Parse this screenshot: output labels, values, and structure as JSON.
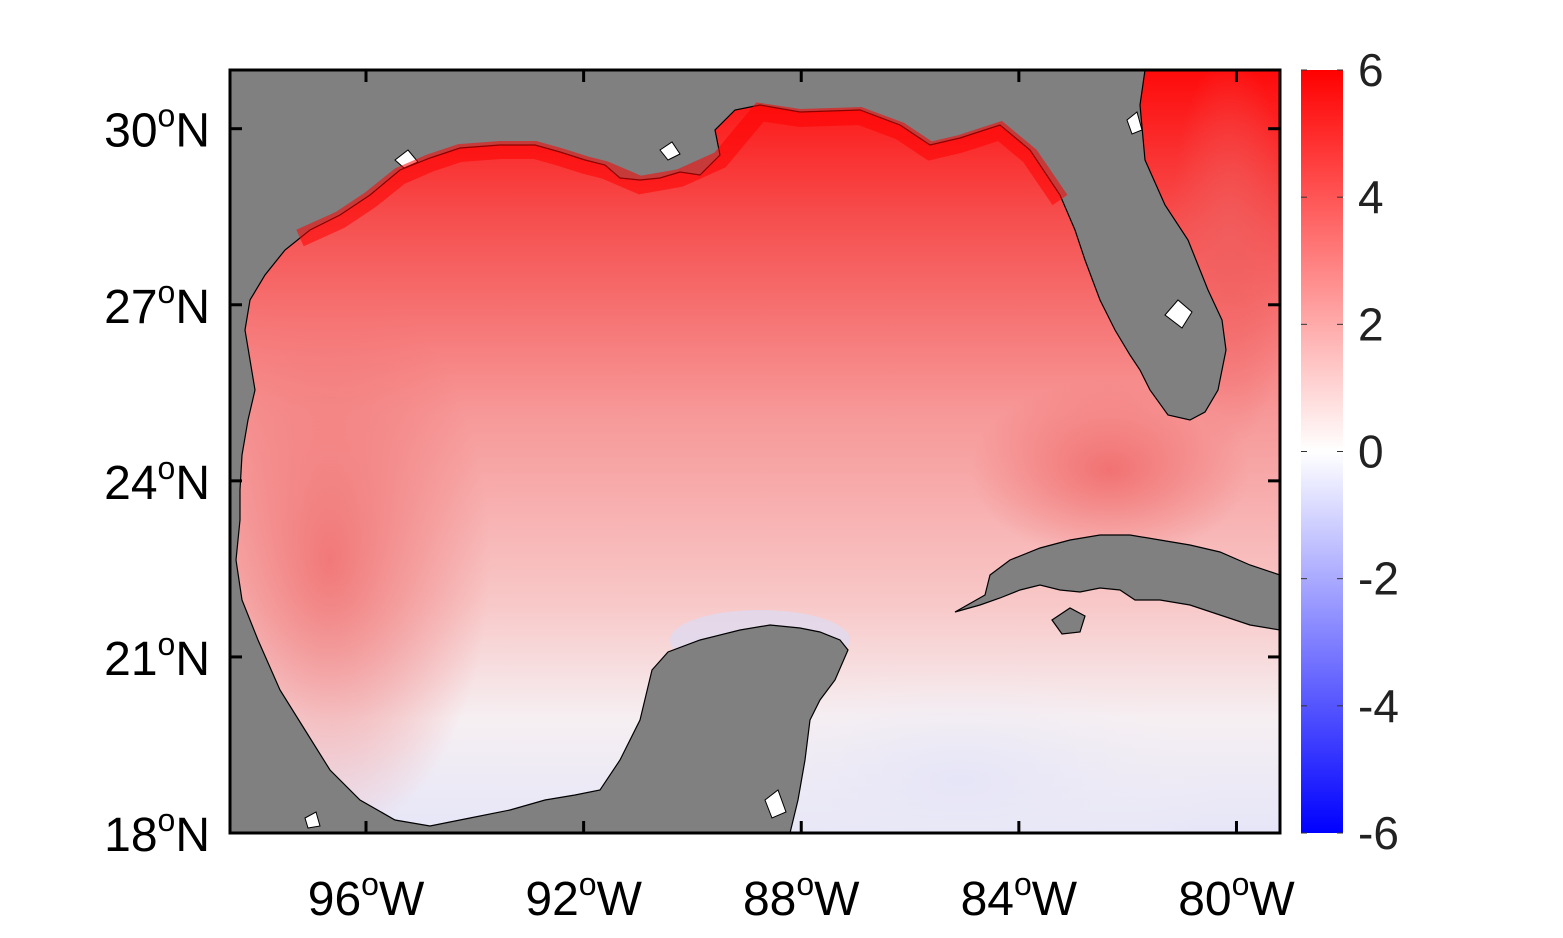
{
  "map": {
    "extent": {
      "lon_min": -98.5,
      "lon_max": -79.2,
      "lat_min": 18,
      "lat_max": 31
    },
    "colors": {
      "land": "#808080",
      "coast": "#000000",
      "frame": "#000000",
      "no_data": "#ffffff"
    },
    "x_ticks": [
      {
        "lon": -96,
        "deg": "96",
        "sup": "o",
        "dir": "W"
      },
      {
        "lon": -92,
        "deg": "92",
        "sup": "o",
        "dir": "W"
      },
      {
        "lon": -88,
        "deg": "88",
        "sup": "o",
        "dir": "W"
      },
      {
        "lon": -84,
        "deg": "84",
        "sup": "o",
        "dir": "W"
      },
      {
        "lon": -80,
        "deg": "80",
        "sup": "o",
        "dir": "W"
      }
    ],
    "y_ticks": [
      {
        "lat": 30,
        "deg": "30",
        "sup": "o",
        "dir": "N"
      },
      {
        "lat": 27,
        "deg": "27",
        "sup": "o",
        "dir": "N"
      },
      {
        "lat": 24,
        "deg": "24",
        "sup": "o",
        "dir": "N"
      },
      {
        "lat": 21,
        "deg": "21",
        "sup": "o",
        "dir": "N"
      },
      {
        "lat": 18,
        "deg": "18",
        "sup": "o",
        "dir": "N"
      }
    ]
  },
  "colorbar": {
    "min": -6,
    "max": 6,
    "colormap": "blue-white-red",
    "colors": {
      "low": "#0000ff",
      "mid": "#ffffff",
      "high": "#ff0000"
    },
    "ticks": [
      {
        "value": 6,
        "label": "6"
      },
      {
        "value": 4,
        "label": "4"
      },
      {
        "value": 2,
        "label": "2"
      },
      {
        "value": 0,
        "label": "0"
      },
      {
        "value": -2,
        "label": "-2"
      },
      {
        "value": -4,
        "label": "-4"
      },
      {
        "value": -6,
        "label": "-6"
      }
    ]
  }
}
